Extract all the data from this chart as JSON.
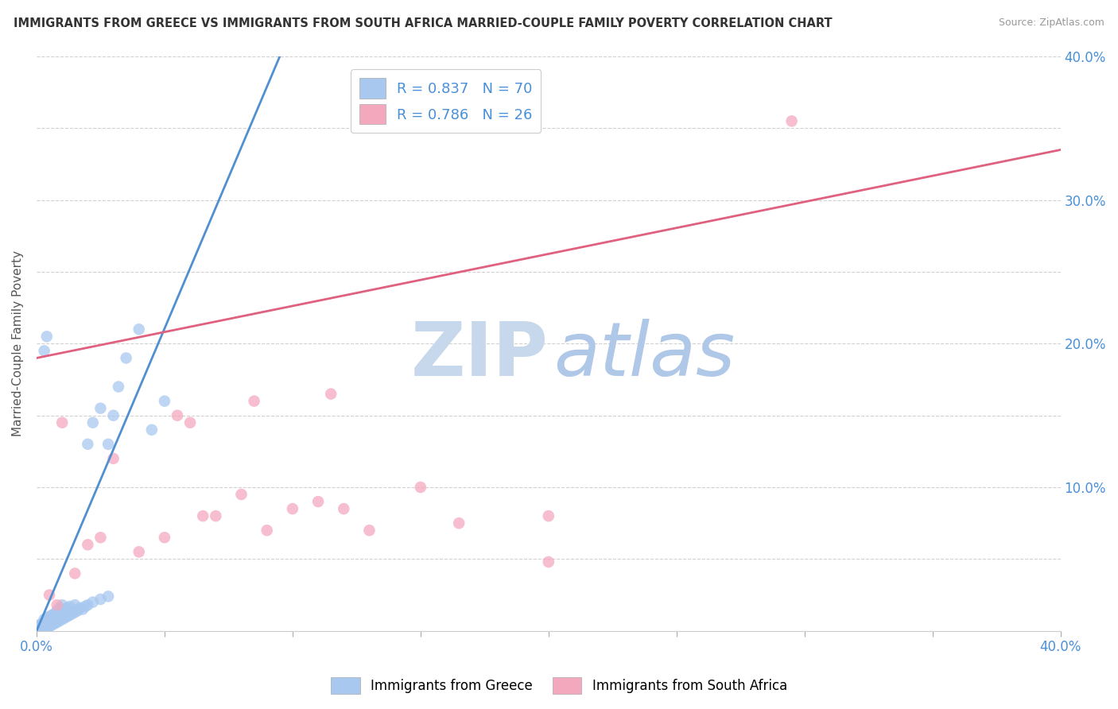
{
  "title": "IMMIGRANTS FROM GREECE VS IMMIGRANTS FROM SOUTH AFRICA MARRIED-COUPLE FAMILY POVERTY CORRELATION CHART",
  "source": "Source: ZipAtlas.com",
  "ylabel": "Married-Couple Family Poverty",
  "xlim": [
    0.0,
    0.4
  ],
  "ylim": [
    0.0,
    0.4
  ],
  "greece_R": 0.837,
  "greece_N": 70,
  "sa_R": 0.786,
  "sa_N": 26,
  "greece_color": "#a8c8f0",
  "sa_color": "#f4a8be",
  "greece_line_color": "#5090d0",
  "sa_line_color": "#e06080",
  "watermark_zip": "ZIP",
  "watermark_atlas": "atlas",
  "watermark_color_zip": "#c8d8ec",
  "watermark_color_atlas": "#b0c8e8",
  "legend_label_greece": "Immigrants from Greece",
  "legend_label_sa": "Immigrants from South Africa",
  "greece_scatter": [
    [
      0.001,
      0.001
    ],
    [
      0.001,
      0.002
    ],
    [
      0.001,
      0.003
    ],
    [
      0.002,
      0.001
    ],
    [
      0.002,
      0.002
    ],
    [
      0.002,
      0.003
    ],
    [
      0.002,
      0.005
    ],
    [
      0.003,
      0.001
    ],
    [
      0.003,
      0.002
    ],
    [
      0.003,
      0.004
    ],
    [
      0.003,
      0.006
    ],
    [
      0.003,
      0.008
    ],
    [
      0.004,
      0.002
    ],
    [
      0.004,
      0.003
    ],
    [
      0.004,
      0.005
    ],
    [
      0.004,
      0.007
    ],
    [
      0.004,
      0.009
    ],
    [
      0.005,
      0.003
    ],
    [
      0.005,
      0.005
    ],
    [
      0.005,
      0.007
    ],
    [
      0.005,
      0.01
    ],
    [
      0.006,
      0.004
    ],
    [
      0.006,
      0.006
    ],
    [
      0.006,
      0.008
    ],
    [
      0.006,
      0.011
    ],
    [
      0.007,
      0.005
    ],
    [
      0.007,
      0.008
    ],
    [
      0.007,
      0.012
    ],
    [
      0.008,
      0.006
    ],
    [
      0.008,
      0.01
    ],
    [
      0.008,
      0.014
    ],
    [
      0.009,
      0.007
    ],
    [
      0.009,
      0.012
    ],
    [
      0.009,
      0.016
    ],
    [
      0.01,
      0.008
    ],
    [
      0.01,
      0.013
    ],
    [
      0.01,
      0.018
    ],
    [
      0.011,
      0.009
    ],
    [
      0.011,
      0.015
    ],
    [
      0.012,
      0.01
    ],
    [
      0.012,
      0.016
    ],
    [
      0.013,
      0.011
    ],
    [
      0.013,
      0.017
    ],
    [
      0.014,
      0.012
    ],
    [
      0.015,
      0.013
    ],
    [
      0.015,
      0.018
    ],
    [
      0.016,
      0.014
    ],
    [
      0.017,
      0.016
    ],
    [
      0.018,
      0.015
    ],
    [
      0.019,
      0.017
    ],
    [
      0.02,
      0.018
    ],
    [
      0.022,
      0.02
    ],
    [
      0.025,
      0.022
    ],
    [
      0.028,
      0.024
    ],
    [
      0.03,
      0.15
    ],
    [
      0.032,
      0.17
    ],
    [
      0.035,
      0.19
    ],
    [
      0.04,
      0.21
    ],
    [
      0.045,
      0.14
    ],
    [
      0.05,
      0.16
    ],
    [
      0.003,
      0.195
    ],
    [
      0.004,
      0.205
    ],
    [
      0.02,
      0.13
    ],
    [
      0.022,
      0.145
    ],
    [
      0.025,
      0.155
    ],
    [
      0.028,
      0.13
    ],
    [
      0.001,
      0.0005
    ],
    [
      0.002,
      0.0008
    ],
    [
      0.0005,
      0.0003
    ],
    [
      0.001,
      0.004
    ]
  ],
  "sa_scatter": [
    [
      0.005,
      0.025
    ],
    [
      0.008,
      0.018
    ],
    [
      0.01,
      0.145
    ],
    [
      0.015,
      0.04
    ],
    [
      0.02,
      0.06
    ],
    [
      0.025,
      0.065
    ],
    [
      0.03,
      0.12
    ],
    [
      0.04,
      0.055
    ],
    [
      0.05,
      0.065
    ],
    [
      0.055,
      0.15
    ],
    [
      0.06,
      0.145
    ],
    [
      0.065,
      0.08
    ],
    [
      0.07,
      0.08
    ],
    [
      0.08,
      0.095
    ],
    [
      0.085,
      0.16
    ],
    [
      0.09,
      0.07
    ],
    [
      0.1,
      0.085
    ],
    [
      0.11,
      0.09
    ],
    [
      0.115,
      0.165
    ],
    [
      0.12,
      0.085
    ],
    [
      0.13,
      0.07
    ],
    [
      0.15,
      0.1
    ],
    [
      0.165,
      0.075
    ],
    [
      0.2,
      0.08
    ],
    [
      0.295,
      0.355
    ],
    [
      0.2,
      0.048
    ]
  ],
  "greece_line_x": [
    0.0,
    0.095
  ],
  "greece_line_y": [
    0.0,
    0.4
  ],
  "sa_line_x": [
    0.0,
    0.4
  ],
  "sa_line_y": [
    0.19,
    0.335
  ]
}
